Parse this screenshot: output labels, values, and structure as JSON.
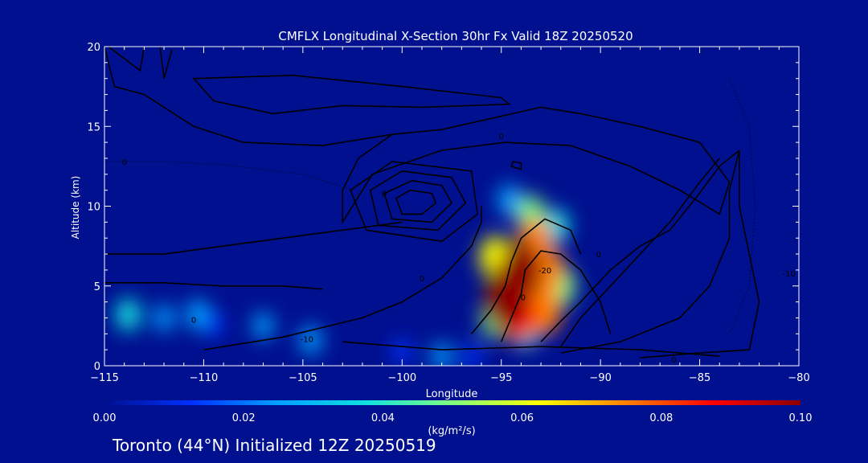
{
  "chart_data": {
    "type": "heatmap",
    "title": "CMFLX Longitudinal X-Section 30hr  Fx Valid 18Z 20250520",
    "xlabel": "Longitude",
    "ylabel": "Altitude (km)",
    "xlim": [
      -115,
      -80
    ],
    "ylim": [
      0,
      20
    ],
    "x_ticks": [
      -115,
      -110,
      -105,
      -100,
      -95,
      -90,
      -85,
      -80
    ],
    "x_tick_labels": [
      "−115",
      "−110",
      "−105",
      "−100",
      "−95",
      "−90",
      "−85",
      "−80"
    ],
    "y_ticks": [
      0,
      5,
      10,
      15,
      20
    ],
    "y_tick_labels": [
      "0",
      "5",
      "10",
      "15",
      "20"
    ],
    "colorbar": {
      "min": 0.0,
      "max": 0.1,
      "ticks": [
        "0.00",
        "0.02",
        "0.04",
        "0.06",
        "0.08",
        "0.10"
      ],
      "units": "(kg/m²/s)"
    },
    "colormap": [
      "#00108f",
      "#0030ff",
      "#00a0ff",
      "#10e0e0",
      "#80ff80",
      "#ffff00",
      "#ff8000",
      "#ff0000",
      "#8b0000"
    ],
    "flux_cells": [
      {
        "lon": -94.5,
        "alt": 5.0,
        "value": 0.1
      },
      {
        "lon": -94.0,
        "alt": 6.0,
        "value": 0.1
      },
      {
        "lon": -94.8,
        "alt": 4.0,
        "value": 0.1
      },
      {
        "lon": -94.2,
        "alt": 3.2,
        "value": 0.09
      },
      {
        "lon": -93.3,
        "alt": 7.8,
        "value": 0.07
      },
      {
        "lon": -92.7,
        "alt": 6.0,
        "value": 0.07
      },
      {
        "lon": -92.9,
        "alt": 3.5,
        "value": 0.08
      },
      {
        "lon": -95.3,
        "alt": 6.8,
        "value": 0.06
      },
      {
        "lon": -95.3,
        "alt": 3.0,
        "value": 0.05
      },
      {
        "lon": -93.5,
        "alt": 9.5,
        "value": 0.045
      },
      {
        "lon": -94.6,
        "alt": 10.4,
        "value": 0.03
      },
      {
        "lon": -92.2,
        "alt": 8.8,
        "value": 0.035
      },
      {
        "lon": -92.0,
        "alt": 5.0,
        "value": 0.05
      },
      {
        "lon": -93.8,
        "alt": 2.2,
        "value": 0.04
      },
      {
        "lon": -113.8,
        "alt": 3.2,
        "value": 0.035
      },
      {
        "lon": -112.0,
        "alt": 3.0,
        "value": 0.02
      },
      {
        "lon": -110.3,
        "alt": 3.2,
        "value": 0.03
      },
      {
        "lon": -109.5,
        "alt": 2.6,
        "value": 0.015
      },
      {
        "lon": -107.0,
        "alt": 2.5,
        "value": 0.02
      },
      {
        "lon": -104.6,
        "alt": 1.6,
        "value": 0.025
      },
      {
        "lon": -100.0,
        "alt": 0.9,
        "value": 0.015
      },
      {
        "lon": -98.0,
        "alt": 0.6,
        "value": 0.02
      },
      {
        "lon": -96.5,
        "alt": 0.6,
        "value": 0.015
      }
    ],
    "contours": [
      {
        "label": "-20",
        "points": [
          [
            -96.5,
            2.0
          ],
          [
            -95.5,
            3.5
          ],
          [
            -94.8,
            5.0
          ],
          [
            -94.5,
            6.5
          ],
          [
            -94.0,
            8.0
          ],
          [
            -92.8,
            9.2
          ],
          [
            -91.5,
            8.5
          ],
          [
            -91.0,
            7.0
          ]
        ]
      },
      {
        "label": "",
        "points": [
          [
            -95.0,
            1.5
          ],
          [
            -94.5,
            3.0
          ],
          [
            -94.0,
            4.5
          ],
          [
            -93.8,
            6.0
          ],
          [
            -93.0,
            7.2
          ],
          [
            -92.0,
            7.0
          ],
          [
            -91.0,
            6.0
          ],
          [
            -90.0,
            4.0
          ],
          [
            -89.5,
            2.0
          ]
        ]
      },
      {
        "label": "",
        "points": [
          [
            -103.0,
            1.5
          ],
          [
            -98.0,
            1.0
          ],
          [
            -93.0,
            1.2
          ],
          [
            -88.0,
            1.0
          ],
          [
            -84.0,
            0.6
          ]
        ]
      },
      {
        "label": "",
        "points": [
          [
            -93.0,
            1.5
          ],
          [
            -92.0,
            2.8
          ],
          [
            -91.0,
            4.0
          ],
          [
            -89.5,
            6.0
          ],
          [
            -88.0,
            7.5
          ],
          [
            -86.5,
            8.5
          ],
          [
            -85.2,
            10.5
          ],
          [
            -84.0,
            12.5
          ],
          [
            -83.0,
            13.5
          ]
        ]
      },
      {
        "label": "",
        "points": [
          [
            -92.0,
            1.2
          ],
          [
            -91.0,
            3.0
          ],
          [
            -89.5,
            5.0
          ],
          [
            -88.0,
            7.0
          ],
          [
            -86.5,
            9.0
          ],
          [
            -85.0,
            11.5
          ],
          [
            -84.0,
            13.0
          ]
        ]
      },
      {
        "label": "",
        "points": [
          [
            -92.0,
            0.8
          ],
          [
            -89.0,
            1.5
          ],
          [
            -86.0,
            3.0
          ],
          [
            -84.5,
            5.0
          ],
          [
            -83.5,
            8.0
          ],
          [
            -83.5,
            11.0
          ],
          [
            -83.0,
            13.5
          ]
        ]
      },
      {
        "label": "",
        "points": [
          [
            -88.0,
            0.5
          ],
          [
            -85.0,
            0.8
          ],
          [
            -82.5,
            1.0
          ],
          [
            -82.0,
            4.0
          ],
          [
            -83.0,
            10.0
          ],
          [
            -83.0,
            13.5
          ]
        ]
      },
      {
        "label": "0",
        "points": [
          [
            -110.0,
            1.0
          ],
          [
            -106.0,
            1.8
          ],
          [
            -102.0,
            3.0
          ],
          [
            -100.0,
            4.0
          ],
          [
            -98.0,
            5.5
          ],
          [
            -96.5,
            7.5
          ],
          [
            -96.0,
            9.0
          ],
          [
            -96.0,
            10.0
          ]
        ]
      },
      {
        "label": "",
        "points": [
          [
            -115.0,
            5.2
          ],
          [
            -112.0,
            5.2
          ],
          [
            -109.0,
            5.0
          ],
          [
            -106.0,
            5.0
          ],
          [
            -104.0,
            4.8
          ]
        ]
      },
      {
        "label": "",
        "points": [
          [
            -115.0,
            7.0
          ],
          [
            -112.0,
            7.0
          ],
          [
            -109.0,
            7.5
          ],
          [
            -106.0,
            8.0
          ],
          [
            -103.0,
            8.5
          ],
          [
            -100.0,
            9.0
          ]
        ]
      }
    ],
    "closed_contours": [
      {
        "label": "",
        "points": [
          [
            -100.0,
            9.5
          ],
          [
            -99.0,
            9.5
          ],
          [
            -98.3,
            10.2
          ],
          [
            -98.5,
            10.8
          ],
          [
            -99.6,
            11.0
          ],
          [
            -100.3,
            10.5
          ]
        ]
      },
      {
        "label": "",
        "points": [
          [
            -100.5,
            9.2
          ],
          [
            -98.5,
            9.0
          ],
          [
            -97.5,
            10.2
          ],
          [
            -98.0,
            11.3
          ],
          [
            -99.5,
            11.6
          ],
          [
            -100.9,
            10.8
          ]
        ]
      },
      {
        "label": "",
        "points": [
          [
            -101.2,
            8.8
          ],
          [
            -98.2,
            8.5
          ],
          [
            -96.8,
            10.2
          ],
          [
            -97.5,
            11.8
          ],
          [
            -100.0,
            12.2
          ],
          [
            -101.6,
            11.0
          ]
        ]
      },
      {
        "label": "0",
        "points": [
          [
            -101.8,
            8.5
          ],
          [
            -98.0,
            7.8
          ],
          [
            -96.2,
            9.5
          ],
          [
            -96.5,
            12.2
          ],
          [
            -100.5,
            12.8
          ],
          [
            -102.6,
            11.0
          ]
        ]
      },
      {
        "label": "",
        "points": [
          [
            -94.5,
            12.5
          ],
          [
            -94.0,
            12.3
          ],
          [
            -94.0,
            12.7
          ],
          [
            -94.4,
            12.8
          ]
        ]
      },
      {
        "label": "",
        "points": [
          [
            -110.5,
            18.0
          ],
          [
            -105.5,
            18.2
          ],
          [
            -100.0,
            17.5
          ],
          [
            -95.0,
            16.8
          ],
          [
            -94.6,
            16.4
          ],
          [
            -99.0,
            16.2
          ],
          [
            -103.0,
            16.3
          ],
          [
            -106.5,
            15.8
          ],
          [
            -109.5,
            16.6
          ]
        ]
      }
    ],
    "outer_contour": {
      "label": "0",
      "points": [
        [
          -103.0,
          9.0
        ],
        [
          -101.5,
          12.0
        ],
        [
          -98.0,
          13.5
        ],
        [
          -94.8,
          14.0
        ],
        [
          -91.5,
          13.8
        ],
        [
          -88.5,
          12.5
        ],
        [
          -86.0,
          11.0
        ],
        [
          -84.0,
          9.5
        ],
        [
          -83.5,
          11.5
        ],
        [
          -85.0,
          14.0
        ],
        [
          -88.0,
          15.0
        ],
        [
          -91.0,
          15.8
        ],
        [
          -93.0,
          16.2
        ],
        [
          -95.5,
          15.5
        ],
        [
          -98.0,
          14.8
        ],
        [
          -100.5,
          14.5
        ],
        [
          -102.2,
          13.0
        ],
        [
          -103.0,
          11.0
        ]
      ]
    },
    "left_contours": [
      {
        "label": "",
        "points": [
          [
            -115.0,
            20.0
          ],
          [
            -114.5,
            17.5
          ],
          [
            -113.0,
            17.0
          ],
          [
            -110.5,
            15.0
          ],
          [
            -108.0,
            14.0
          ],
          [
            -104.0,
            13.8
          ],
          [
            -100.5,
            14.5
          ]
        ]
      },
      {
        "label": "",
        "points": [
          [
            -112.2,
            20.0
          ],
          [
            -112.0,
            18.0
          ],
          [
            -111.6,
            19.8
          ]
        ]
      },
      {
        "label": "",
        "points": [
          [
            -114.8,
            20.0
          ],
          [
            -113.2,
            18.5
          ],
          [
            -113.0,
            20.0
          ]
        ]
      }
    ],
    "dotted_contours": [
      {
        "label": "10",
        "points": [
          [
            -115.0,
            12.8
          ],
          [
            -112.0,
            12.8
          ],
          [
            -109.0,
            12.6
          ],
          [
            -105.0,
            12.0
          ],
          [
            -102.5,
            11.0
          ]
        ]
      },
      {
        "label": "10",
        "points": [
          [
            -83.5,
            18.0
          ],
          [
            -82.5,
            15.0
          ],
          [
            -82.2,
            10.0
          ],
          [
            -82.5,
            5.0
          ],
          [
            -83.5,
            2.0
          ]
        ]
      }
    ],
    "inline_labels": [
      {
        "text": "0",
        "lon": -100.9,
        "alt": 10.8
      },
      {
        "text": "0",
        "lon": -99.0,
        "alt": 5.5
      },
      {
        "text": "0",
        "lon": -90.1,
        "alt": 7.0
      },
      {
        "text": "0",
        "lon": -95.0,
        "alt": 14.4
      },
      {
        "text": "0",
        "lon": -93.9,
        "alt": 4.3
      },
      {
        "text": "0",
        "lon": -110.5,
        "alt": 2.9
      },
      {
        "text": "0",
        "lon": -114.0,
        "alt": 12.8
      },
      {
        "text": "0",
        "lon": -86.3,
        "alt": 0.4
      },
      {
        "text": "-20",
        "lon": -92.8,
        "alt": 6.0
      },
      {
        "text": "-10",
        "lon": -104.8,
        "alt": 1.7
      },
      {
        "text": "-10",
        "lon": -80.5,
        "alt": 5.8
      }
    ],
    "footer": "Toronto (44°N) Initialized 12Z 20250519"
  }
}
